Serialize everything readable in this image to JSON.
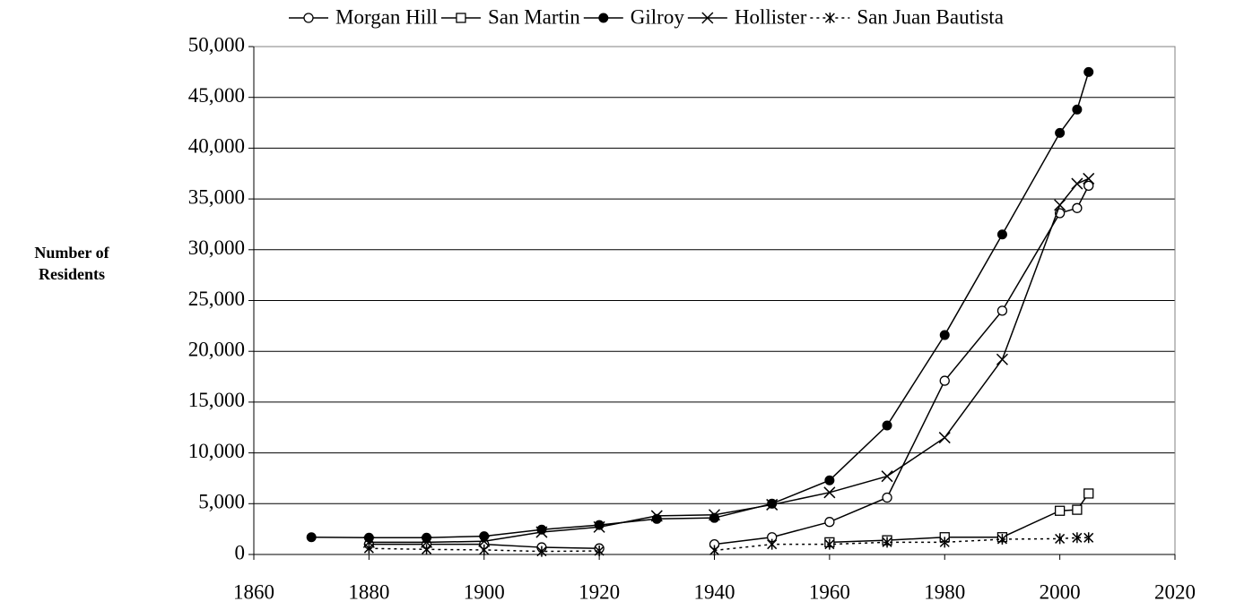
{
  "chart_data": {
    "type": "line",
    "y_label": "Number of Residents",
    "x": [
      1870,
      1880,
      1890,
      1900,
      1910,
      1920,
      1930,
      1940,
      1950,
      1960,
      1970,
      1980,
      1990,
      2000,
      2003,
      2005
    ],
    "series": [
      {
        "name": "Morgan Hill",
        "color": "#000000",
        "marker": "open-circle",
        "dashed": false,
        "values": [
          null,
          1000,
          1000,
          1000,
          700,
          600,
          null,
          1000,
          1700,
          3200,
          5600,
          17100,
          24000,
          33600,
          34100,
          36300
        ]
      },
      {
        "name": "San Martin",
        "color": "#000000",
        "marker": "open-square",
        "dashed": false,
        "values": [
          null,
          null,
          null,
          null,
          null,
          null,
          null,
          null,
          null,
          1200,
          1400,
          1700,
          1700,
          4300,
          4400,
          6000
        ]
      },
      {
        "name": "Gilroy",
        "color": "#000000",
        "marker": "filled-circle",
        "dashed": false,
        "values": [
          1700,
          1650,
          1650,
          1800,
          2450,
          2900,
          3500,
          3600,
          5000,
          7300,
          12700,
          21600,
          31500,
          41500,
          43800,
          47500
        ]
      },
      {
        "name": "Hollister",
        "color": "#000000",
        "marker": "cross",
        "dashed": false,
        "values": [
          null,
          1200,
          1200,
          1300,
          2200,
          2700,
          3800,
          3900,
          4900,
          6100,
          7700,
          11500,
          19200,
          34400,
          36500,
          37000
        ]
      },
      {
        "name": "San Juan Bautista",
        "color": "#000000",
        "marker": "asterisk",
        "dashed": true,
        "values": [
          null,
          600,
          500,
          450,
          300,
          350,
          null,
          400,
          1000,
          1000,
          1200,
          1200,
          1500,
          1550,
          1650,
          1650
        ]
      }
    ],
    "xlim": [
      1860,
      2020
    ],
    "xticks": [
      1860,
      1880,
      1900,
      1920,
      1940,
      1960,
      1980,
      2000,
      2020
    ],
    "ylim": [
      0,
      50000
    ],
    "yticks": [
      0,
      {
        "value": 5000,
        "label": "5,000"
      },
      {
        "value": 10000,
        "label": "10,000"
      },
      {
        "value": 15000,
        "label": "15,000"
      },
      {
        "value": 20000,
        "label": "20,000"
      },
      {
        "value": 25000,
        "label": "25,000"
      },
      {
        "value": 30000,
        "label": "30,000"
      },
      {
        "value": 35000,
        "label": "35,000"
      },
      {
        "value": 40000,
        "label": "40,000"
      },
      {
        "value": 45000,
        "label": "45,000"
      },
      {
        "value": 50000,
        "label": "50,000"
      }
    ],
    "grid": true,
    "legend": "top"
  }
}
